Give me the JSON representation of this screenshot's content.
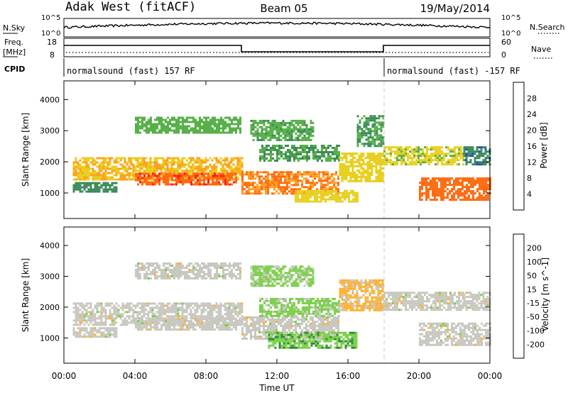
{
  "header": {
    "station": "Adak West (fitACF)",
    "beam": "Beam 05",
    "date": "19/May/2014"
  },
  "top_panel": {
    "left_label": "N.Sky",
    "right_label": "N.Search",
    "left_ticks": [
      "10^5",
      "10^0"
    ],
    "right_ticks": [
      "10^5",
      "10^0"
    ]
  },
  "freq_panel": {
    "left_label_1": "Freq.",
    "left_label_2": "[MHz]",
    "right_label": "Nave",
    "left_ticks": [
      "18",
      "8"
    ],
    "right_ticks": [
      "60",
      "0"
    ],
    "freq_segments": [
      {
        "start_hour": 0,
        "end_hour": 10,
        "level": "high"
      },
      {
        "start_hour": 10,
        "end_hour": 18,
        "level": "low"
      },
      {
        "start_hour": 18,
        "end_hour": 24,
        "level": "high"
      }
    ]
  },
  "cpid_panel": {
    "label": "CPID",
    "segments": [
      {
        "start_hour": 0,
        "text": "normalsound (fast) 157 RF"
      },
      {
        "start_hour": 18,
        "text": "normalsound (fast) -157 RF"
      }
    ]
  },
  "colors": {
    "power": [
      "#1a1aff",
      "#2a4fa8",
      "#3a8a5a",
      "#58b048",
      "#e8d020",
      "#ffa020",
      "#ff6a10",
      "#ff2010"
    ],
    "velocity": [
      "#e00000",
      "#ff4010",
      "#ff8020",
      "#ffb030",
      "#c8c8c0",
      "#7ad048",
      "#2e8a3a",
      "#2a5aa8",
      "#1818d8"
    ]
  },
  "chart_data": [
    {
      "type": "heatmap",
      "title": "",
      "xlabel": "Time UT",
      "ylabel": "Slant Range [km]",
      "xlim_hours": [
        0,
        24
      ],
      "ylim_km": [
        180,
        4600
      ],
      "x_ticks": [
        "00:00",
        "04:00",
        "08:00",
        "12:00",
        "16:00",
        "20:00",
        "00:00"
      ],
      "y_ticks": [
        1000,
        2000,
        3000,
        4000
      ],
      "colorbar_label": "Power [dB]",
      "colorbar_ticks": [
        "28",
        "24",
        "20",
        "16",
        "12",
        "8",
        "4"
      ],
      "colorbar_range": [
        0,
        32
      ],
      "bands": [
        {
          "t0": 0.5,
          "t1": 10,
          "r0": 1450,
          "r1": 2150,
          "val": 20
        },
        {
          "t0": 4,
          "t1": 9.7,
          "r0": 1250,
          "r1": 1650,
          "val": 27
        },
        {
          "t0": 0.5,
          "t1": 3,
          "r0": 1050,
          "r1": 1350,
          "val": 10
        },
        {
          "t0": 4,
          "t1": 10,
          "r0": 2950,
          "r1": 3450,
          "val": 14
        },
        {
          "t0": 10,
          "t1": 15.5,
          "r0": 1000,
          "r1": 1700,
          "val": 24
        },
        {
          "t0": 11,
          "t1": 15.5,
          "r0": 2050,
          "r1": 2550,
          "val": 12
        },
        {
          "t0": 10.5,
          "t1": 14,
          "r0": 2700,
          "r1": 3350,
          "val": 13
        },
        {
          "t0": 13,
          "t1": 16.5,
          "r0": 700,
          "r1": 1100,
          "val": 18
        },
        {
          "t0": 15.5,
          "t1": 18,
          "r0": 1400,
          "r1": 2300,
          "val": 18
        },
        {
          "t0": 16.5,
          "t1": 18,
          "r0": 2500,
          "r1": 3500,
          "val": 12
        },
        {
          "t0": 18,
          "t1": 22.5,
          "r0": 1900,
          "r1": 2500,
          "val": 17
        },
        {
          "t0": 20,
          "t1": 24,
          "r0": 800,
          "r1": 1500,
          "val": 26
        },
        {
          "t0": 22.5,
          "t1": 24,
          "r0": 1900,
          "r1": 2500,
          "val": 9
        }
      ]
    },
    {
      "type": "heatmap",
      "title": "",
      "xlabel": "Time UT",
      "ylabel": "Slant Range [km]",
      "xlim_hours": [
        0,
        24
      ],
      "ylim_km": [
        180,
        4600
      ],
      "x_ticks": [
        "00:00",
        "04:00",
        "08:00",
        "12:00",
        "16:00",
        "20:00",
        "00:00"
      ],
      "y_ticks": [
        1000,
        2000,
        3000,
        4000
      ],
      "colorbar_label": "Velocity [m s^-1]",
      "colorbar_ticks": [
        "200",
        "100",
        "50",
        "15",
        "-15",
        "-50",
        "-100",
        "-200"
      ],
      "colorbar_range": [
        -250,
        250
      ],
      "bands": [
        {
          "t0": 0.5,
          "t1": 10,
          "r0": 1450,
          "r1": 2150,
          "val": 0
        },
        {
          "t0": 4,
          "t1": 9.7,
          "r0": 1250,
          "r1": 1650,
          "val": 0
        },
        {
          "t0": 0.5,
          "t1": 3,
          "r0": 1050,
          "r1": 1350,
          "val": 0
        },
        {
          "t0": 4,
          "t1": 10,
          "r0": 2950,
          "r1": 3450,
          "val": 0
        },
        {
          "t0": 10,
          "t1": 15.5,
          "r0": 1000,
          "r1": 1700,
          "val": 0
        },
        {
          "t0": 11,
          "t1": 15.5,
          "r0": 1700,
          "r1": 2300,
          "val": -40
        },
        {
          "t0": 10.5,
          "t1": 14,
          "r0": 2700,
          "r1": 3350,
          "val": -40
        },
        {
          "t0": 11.5,
          "t1": 16.5,
          "r0": 700,
          "r1": 1200,
          "val": -70
        },
        {
          "t0": 15.5,
          "t1": 18,
          "r0": 1900,
          "r1": 2900,
          "val": 40
        },
        {
          "t0": 18,
          "t1": 22.5,
          "r0": 1900,
          "r1": 2500,
          "val": 0
        },
        {
          "t0": 20,
          "t1": 24,
          "r0": 800,
          "r1": 1500,
          "val": 0
        },
        {
          "t0": 22.5,
          "t1": 24,
          "r0": 1900,
          "r1": 2500,
          "val": 0
        }
      ]
    }
  ]
}
